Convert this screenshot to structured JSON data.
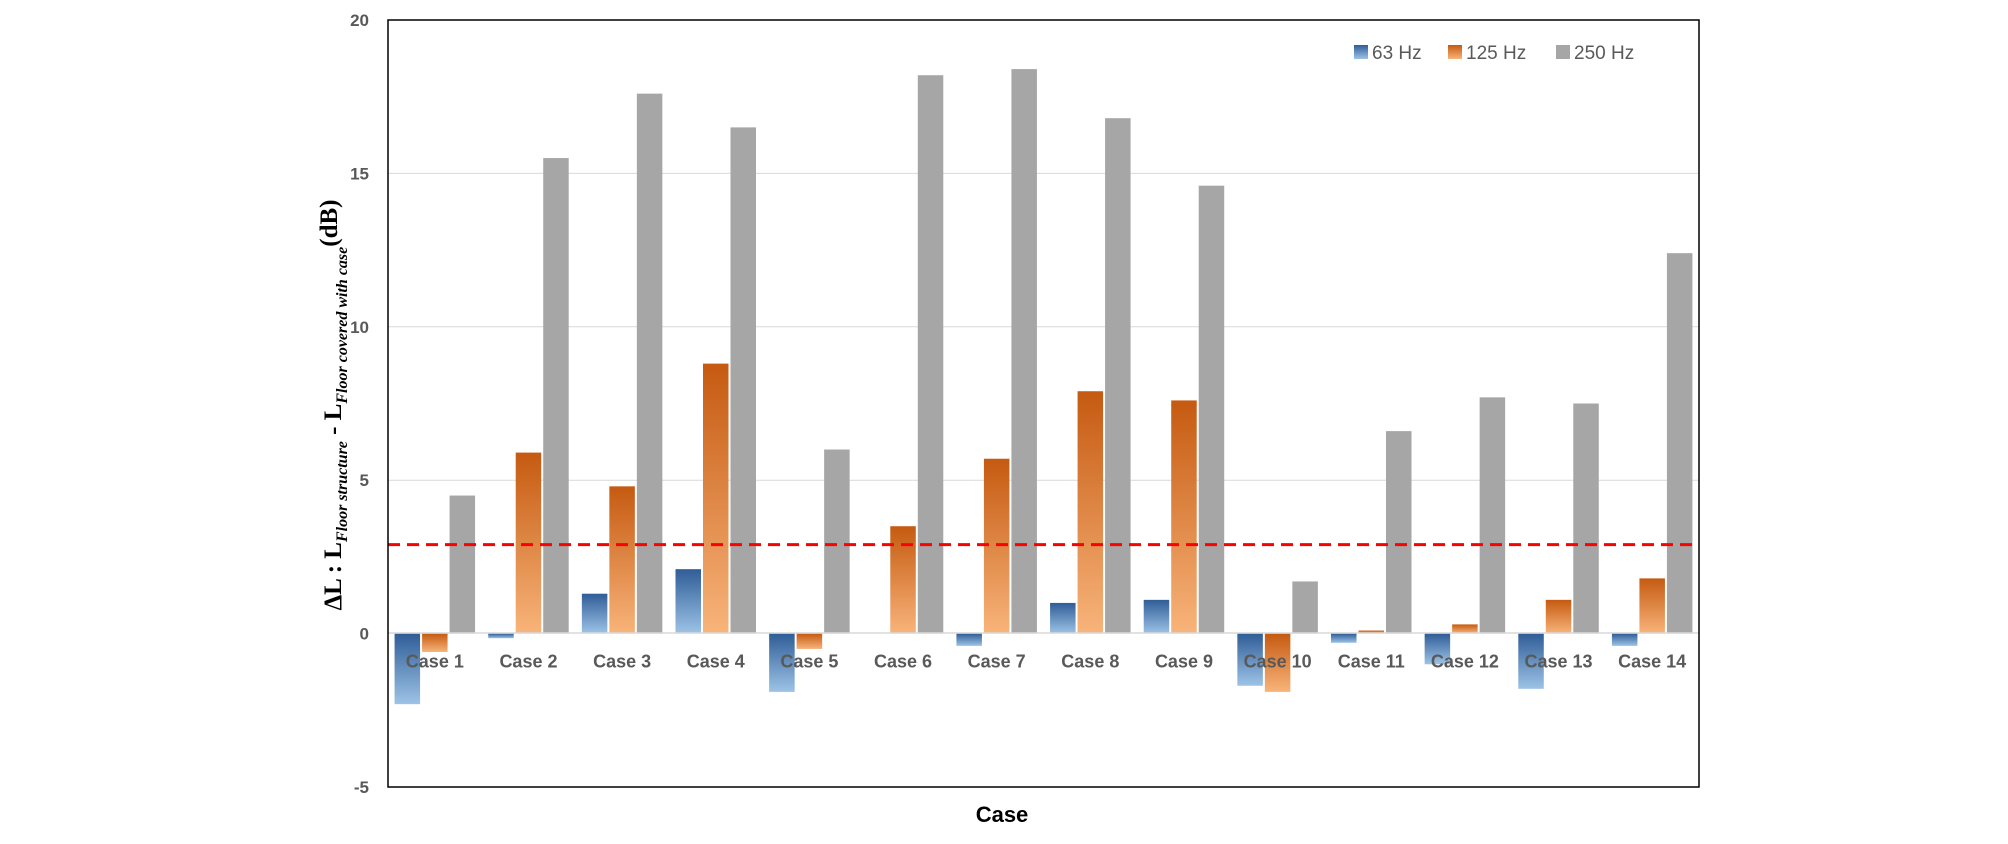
{
  "chart_data": {
    "type": "bar",
    "title": "",
    "xlabel": "Case",
    "ylabel": {
      "prefix": "ΔL : L",
      "sub1": "Floor structure",
      "mid": " - L",
      "sub2": "Floor covered with case",
      "suffix": "(dB)"
    },
    "ylim": [
      -5,
      20
    ],
    "yticks": [
      "-5",
      "0",
      "5",
      "10",
      "15",
      "20"
    ],
    "grid": true,
    "legend_position": "top-right",
    "reference_line": {
      "value": 2.9,
      "color": "#ff0000",
      "style": "dashed"
    },
    "categories": [
      "Case 1",
      "Case 2",
      "Case 3",
      "Case 4",
      "Case 5",
      "Case 6",
      "Case 7",
      "Case 8",
      "Case 9",
      "Case 10",
      "Case 11",
      "Case 12",
      "Case 13",
      "Case 14"
    ],
    "series": [
      {
        "name": "63 Hz",
        "color_top": "#2f5d97",
        "color_bottom": "#9dc3e6",
        "values": [
          -2.3,
          -0.15,
          1.3,
          2.1,
          -1.9,
          0,
          -0.4,
          1.0,
          1.1,
          -1.7,
          -0.3,
          -1.0,
          -1.8,
          -0.4
        ]
      },
      {
        "name": "125 Hz",
        "color_top": "#c55a11",
        "color_bottom": "#f8b47a",
        "values": [
          -0.6,
          5.9,
          4.8,
          8.8,
          -0.5,
          3.5,
          5.7,
          7.9,
          7.6,
          -1.9,
          0.1,
          0.3,
          1.1,
          1.8
        ]
      },
      {
        "name": "250 Hz",
        "color_top": "#a6a6a6",
        "color_bottom": "#a6a6a6",
        "values": [
          4.5,
          15.5,
          17.6,
          16.5,
          6.0,
          18.2,
          18.4,
          16.8,
          14.6,
          1.7,
          6.6,
          7.7,
          7.5,
          12.4
        ]
      }
    ]
  }
}
